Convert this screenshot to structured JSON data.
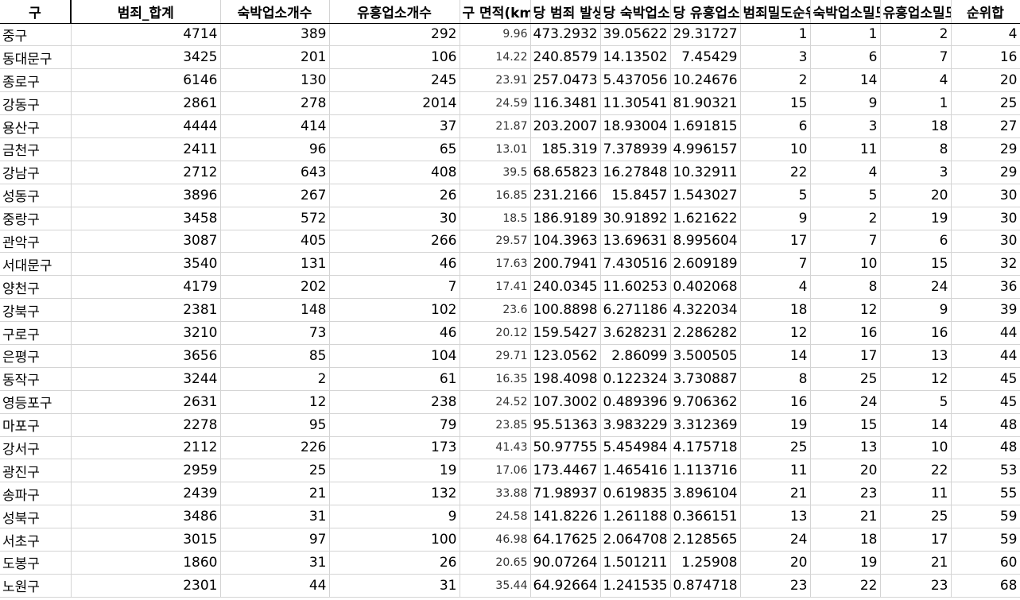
{
  "headers": [
    "구",
    "범죄_합계",
    "숙박업소개수",
    "유흥업소개수",
    "구 면적(km",
    "당 범죄 발생",
    "당 숙박업소",
    "당 유흥업소",
    "범죄밀도순위",
    "숙박업소밀도순위",
    "유흥업소밀도순위",
    "순위합"
  ],
  "rows": [
    [
      "중구",
      "4714",
      "389",
      "292",
      "9.96",
      "473.2932",
      "39.05622",
      "29.31727",
      "1",
      "1",
      "2",
      "4"
    ],
    [
      "동대문구",
      "3425",
      "201",
      "106",
      "14.22",
      "240.8579",
      "14.13502",
      "7.45429",
      "3",
      "6",
      "7",
      "16"
    ],
    [
      "종로구",
      "6146",
      "130",
      "245",
      "23.91",
      "257.0473",
      "5.437056",
      "10.24676",
      "2",
      "14",
      "4",
      "20"
    ],
    [
      "강동구",
      "2861",
      "278",
      "2014",
      "24.59",
      "116.3481",
      "11.30541",
      "81.90321",
      "15",
      "9",
      "1",
      "25"
    ],
    [
      "용산구",
      "4444",
      "414",
      "37",
      "21.87",
      "203.2007",
      "18.93004",
      "1.691815",
      "6",
      "3",
      "18",
      "27"
    ],
    [
      "금천구",
      "2411",
      "96",
      "65",
      "13.01",
      "185.319",
      "7.378939",
      "4.996157",
      "10",
      "11",
      "8",
      "29"
    ],
    [
      "강남구",
      "2712",
      "643",
      "408",
      "39.5",
      "68.65823",
      "16.27848",
      "10.32911",
      "22",
      "4",
      "3",
      "29"
    ],
    [
      "성동구",
      "3896",
      "267",
      "26",
      "16.85",
      "231.2166",
      "15.8457",
      "1.543027",
      "5",
      "5",
      "20",
      "30"
    ],
    [
      "중랑구",
      "3458",
      "572",
      "30",
      "18.5",
      "186.9189",
      "30.91892",
      "1.621622",
      "9",
      "2",
      "19",
      "30"
    ],
    [
      "관악구",
      "3087",
      "405",
      "266",
      "29.57",
      "104.3963",
      "13.69631",
      "8.995604",
      "17",
      "7",
      "6",
      "30"
    ],
    [
      "서대문구",
      "3540",
      "131",
      "46",
      "17.63",
      "200.7941",
      "7.430516",
      "2.609189",
      "7",
      "10",
      "15",
      "32"
    ],
    [
      "양천구",
      "4179",
      "202",
      "7",
      "17.41",
      "240.0345",
      "11.60253",
      "0.402068",
      "4",
      "8",
      "24",
      "36"
    ],
    [
      "강북구",
      "2381",
      "148",
      "102",
      "23.6",
      "100.8898",
      "6.271186",
      "4.322034",
      "18",
      "12",
      "9",
      "39"
    ],
    [
      "구로구",
      "3210",
      "73",
      "46",
      "20.12",
      "159.5427",
      "3.628231",
      "2.286282",
      "12",
      "16",
      "16",
      "44"
    ],
    [
      "은평구",
      "3656",
      "85",
      "104",
      "29.71",
      "123.0562",
      "2.86099",
      "3.500505",
      "14",
      "17",
      "13",
      "44"
    ],
    [
      "동작구",
      "3244",
      "2",
      "61",
      "16.35",
      "198.4098",
      "0.122324",
      "3.730887",
      "8",
      "25",
      "12",
      "45"
    ],
    [
      "영등포구",
      "2631",
      "12",
      "238",
      "24.52",
      "107.3002",
      "0.489396",
      "9.706362",
      "16",
      "24",
      "5",
      "45"
    ],
    [
      "마포구",
      "2278",
      "95",
      "79",
      "23.85",
      "95.51363",
      "3.983229",
      "3.312369",
      "19",
      "15",
      "14",
      "48"
    ],
    [
      "강서구",
      "2112",
      "226",
      "173",
      "41.43",
      "50.97755",
      "5.454984",
      "4.175718",
      "25",
      "13",
      "10",
      "48"
    ],
    [
      "광진구",
      "2959",
      "25",
      "19",
      "17.06",
      "173.4467",
      "1.465416",
      "1.113716",
      "11",
      "20",
      "22",
      "53"
    ],
    [
      "송파구",
      "2439",
      "21",
      "132",
      "33.88",
      "71.98937",
      "0.619835",
      "3.896104",
      "21",
      "23",
      "11",
      "55"
    ],
    [
      "성북구",
      "3486",
      "31",
      "9",
      "24.58",
      "141.8226",
      "1.261188",
      "0.366151",
      "13",
      "21",
      "25",
      "59"
    ],
    [
      "서초구",
      "3015",
      "97",
      "100",
      "46.98",
      "64.17625",
      "2.064708",
      "2.128565",
      "24",
      "18",
      "17",
      "59"
    ],
    [
      "도봉구",
      "1860",
      "31",
      "26",
      "20.65",
      "90.07264",
      "1.501211",
      "1.25908",
      "20",
      "19",
      "21",
      "60"
    ],
    [
      "노원구",
      "2301",
      "44",
      "31",
      "35.44",
      "64.92664",
      "1.241535",
      "0.874718",
      "23",
      "22",
      "23",
      "68"
    ]
  ]
}
